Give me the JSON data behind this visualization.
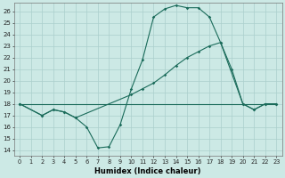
{
  "xlabel": "Humidex (Indice chaleur)",
  "xlim": [
    -0.5,
    23.5
  ],
  "ylim": [
    13.5,
    26.7
  ],
  "xticks": [
    0,
    1,
    2,
    3,
    4,
    5,
    6,
    7,
    8,
    9,
    10,
    11,
    12,
    13,
    14,
    15,
    16,
    17,
    18,
    19,
    20,
    21,
    22,
    23
  ],
  "yticks": [
    14,
    15,
    16,
    17,
    18,
    19,
    20,
    21,
    22,
    23,
    24,
    25,
    26
  ],
  "bg_color": "#cce9e5",
  "grid_color": "#aacfcc",
  "line_color": "#1a6b5a",
  "line1_x": [
    0,
    1,
    2,
    3,
    4,
    5,
    6,
    7,
    8,
    9,
    10,
    11,
    12,
    13,
    14,
    15,
    16,
    17,
    18,
    19,
    20,
    21,
    22,
    23
  ],
  "line1_y": [
    18.0,
    18.0,
    18.0,
    18.0,
    18.0,
    18.0,
    18.0,
    18.0,
    18.0,
    18.0,
    18.0,
    18.0,
    18.0,
    18.0,
    18.0,
    18.0,
    18.0,
    18.0,
    18.0,
    18.0,
    18.0,
    18.0,
    18.0,
    18.0
  ],
  "line2_x": [
    0,
    2,
    3,
    4,
    5,
    6,
    7,
    8,
    9,
    10,
    11,
    12,
    13,
    14,
    15,
    16,
    17,
    18,
    20,
    21,
    22,
    23
  ],
  "line2_y": [
    18.0,
    17.0,
    17.5,
    17.3,
    16.8,
    16.0,
    14.2,
    14.3,
    16.2,
    19.3,
    21.8,
    25.5,
    26.2,
    26.5,
    26.3,
    26.3,
    25.5,
    23.3,
    18.0,
    17.5,
    18.0,
    18.0
  ],
  "line3_x": [
    0,
    2,
    3,
    4,
    5,
    10,
    11,
    12,
    13,
    14,
    15,
    16,
    17,
    18,
    19,
    20,
    21,
    22,
    23
  ],
  "line3_y": [
    18.0,
    17.0,
    17.5,
    17.3,
    16.8,
    18.8,
    19.3,
    19.8,
    20.5,
    21.3,
    22.0,
    22.5,
    23.0,
    23.3,
    21.0,
    18.0,
    17.5,
    18.0,
    18.0
  ]
}
